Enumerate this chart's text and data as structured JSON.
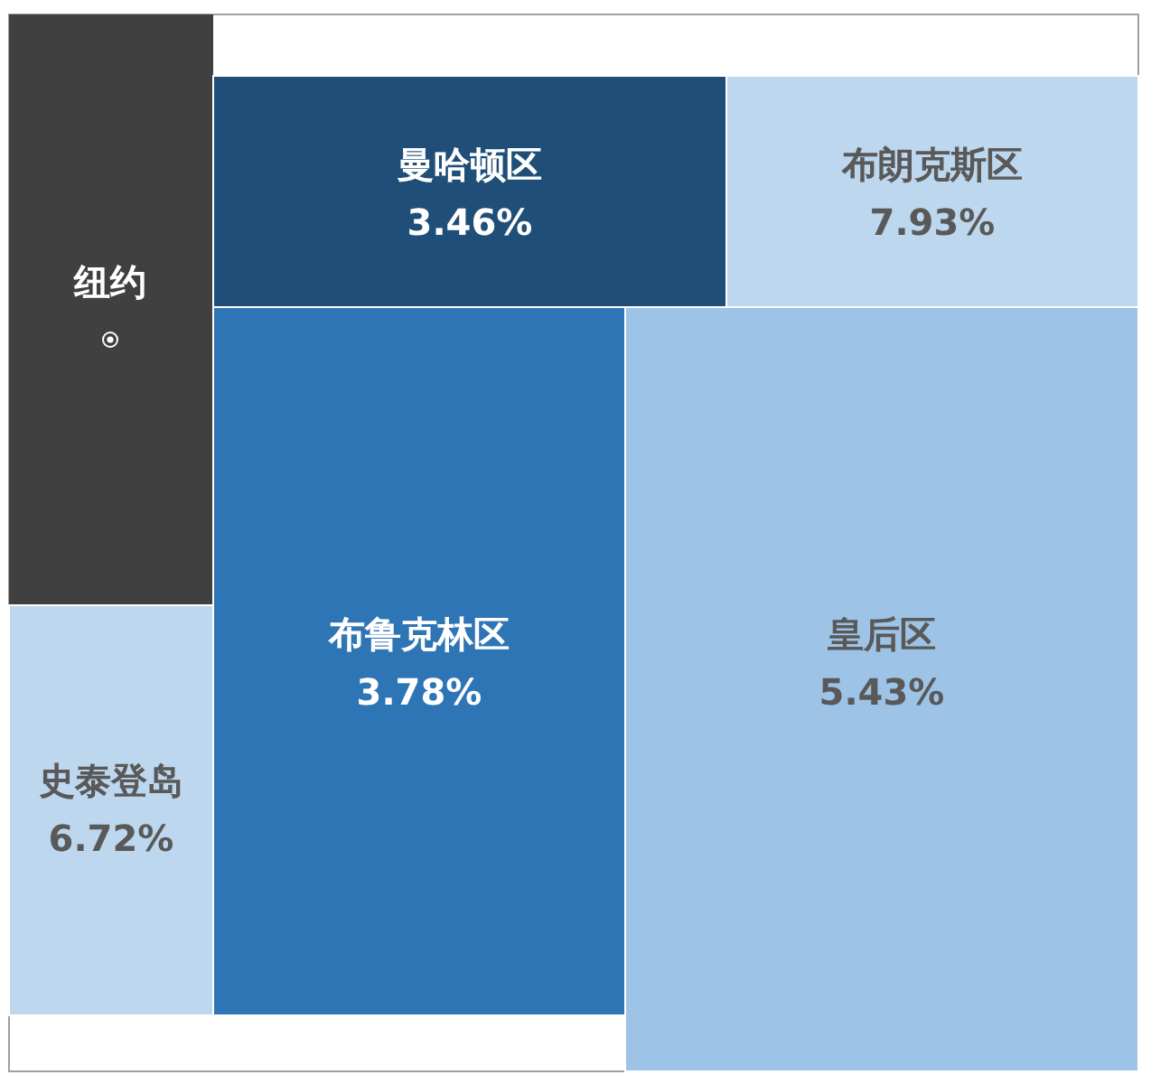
{
  "chart_data": {
    "type": "other",
    "title": "纽约",
    "categories": [
      "曼哈顿区",
      "布朗克斯区",
      "布鲁克林区",
      "皇后区",
      "史泰登岛"
    ],
    "values": [
      3.46,
      7.93,
      3.78,
      5.43,
      6.72
    ],
    "value_labels": [
      "3.46%",
      "7.93%",
      "3.78%",
      "5.43%",
      "6.72%"
    ],
    "colors": [
      "#1f4e79",
      "#bdd7ee",
      "#2e75b6",
      "#9dc3e6",
      "#bdd7ee"
    ]
  }
}
